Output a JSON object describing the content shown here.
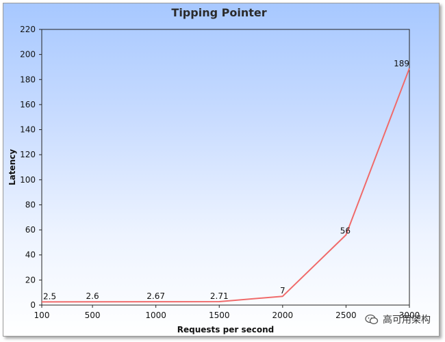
{
  "chart_data": {
    "type": "line",
    "title": "Tipping Pointer",
    "xlabel": "Requests per second",
    "ylabel": "Latency",
    "x": [
      100,
      500,
      1000,
      1500,
      2000,
      2500,
      3000
    ],
    "x_ticks": [
      "100",
      "500",
      "1000",
      "1500",
      "2000",
      "2500",
      "3000"
    ],
    "xlim": [
      100,
      3000
    ],
    "ylim": [
      0,
      220
    ],
    "y_ticks": [
      0,
      20,
      40,
      60,
      80,
      100,
      120,
      140,
      160,
      180,
      200,
      220
    ],
    "series": [
      {
        "values": [
          2.5,
          2.6,
          2.67,
          2.71,
          7,
          56,
          189
        ],
        "labels": [
          "2.5",
          "2.6",
          "2.67",
          "2.71",
          "7",
          "56",
          "189"
        ],
        "color": "#f06a6a"
      }
    ],
    "grid": false,
    "legend": "none"
  },
  "watermark": {
    "text": "高可用架构",
    "icon": "wechat-icon"
  }
}
